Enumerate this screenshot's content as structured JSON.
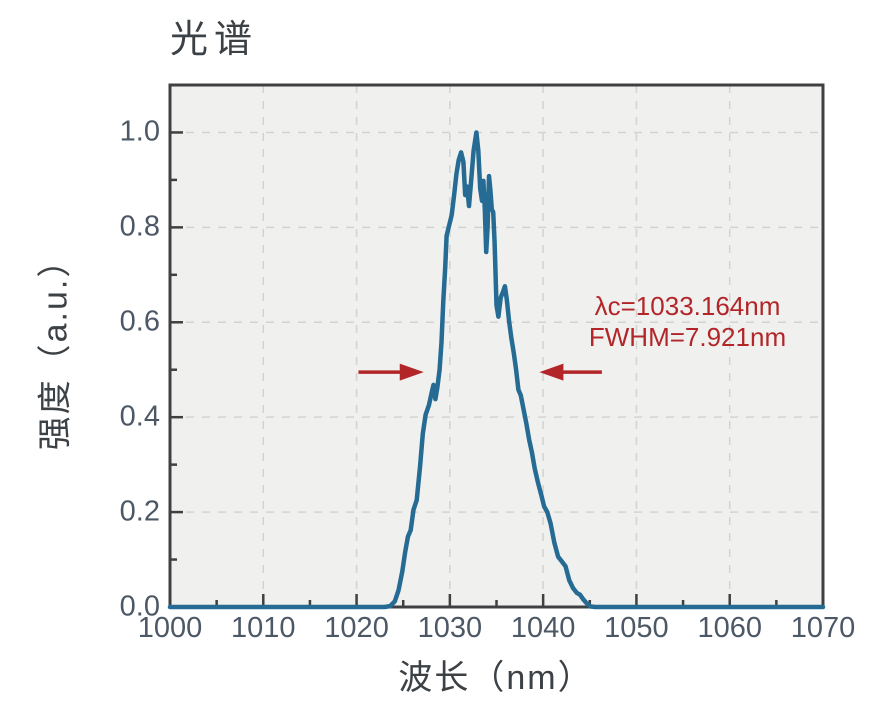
{
  "chart_data": {
    "type": "line",
    "title": "光谱",
    "xlabel": "波长（nm）",
    "ylabel": "强度（a.u.）",
    "xlim": [
      1000,
      1070
    ],
    "ylim": [
      0,
      1.1
    ],
    "x_major_ticks": [
      1000,
      1010,
      1020,
      1030,
      1040,
      1050,
      1060,
      1070
    ],
    "x_minor_step": 5,
    "y_major_ticks": [
      0.0,
      0.2,
      0.4,
      0.6,
      0.8,
      1.0
    ],
    "y_minor_step": 0.1,
    "grid": "dashed-major",
    "legend": "none",
    "plot_bg": "#f0f0ee",
    "grid_color": "#d3d3d1",
    "spine_color": "#3f4041",
    "line_color": "#266b93",
    "annotation": {
      "lines": [
        "λc=1033.164nm",
        "FWHM=7.921nm"
      ],
      "color": "#b2262a"
    },
    "fwhm_arrows": [
      {
        "from_nm": 1020.2,
        "to_nm": 1027.2,
        "y": 0.495,
        "direction": "right"
      },
      {
        "from_nm": 1046.3,
        "to_nm": 1039.6,
        "y": 0.495,
        "direction": "left"
      }
    ],
    "series": [
      {
        "name": "spectrum",
        "points": [
          [
            1000,
            0
          ],
          [
            1005,
            0
          ],
          [
            1010,
            0
          ],
          [
            1015,
            0
          ],
          [
            1020,
            0
          ],
          [
            1023,
            0
          ],
          [
            1023.6,
            0.002
          ],
          [
            1024.1,
            0.012
          ],
          [
            1024.5,
            0.035
          ],
          [
            1024.9,
            0.075
          ],
          [
            1025.2,
            0.115
          ],
          [
            1025.5,
            0.148
          ],
          [
            1025.8,
            0.162
          ],
          [
            1026.1,
            0.205
          ],
          [
            1026.45,
            0.225
          ],
          [
            1026.8,
            0.295
          ],
          [
            1027.1,
            0.365
          ],
          [
            1027.4,
            0.405
          ],
          [
            1027.75,
            0.425
          ],
          [
            1028.05,
            0.452
          ],
          [
            1028.25,
            0.468
          ],
          [
            1028.45,
            0.438
          ],
          [
            1028.65,
            0.462
          ],
          [
            1028.9,
            0.5
          ],
          [
            1029.1,
            0.558
          ],
          [
            1029.3,
            0.645
          ],
          [
            1029.5,
            0.715
          ],
          [
            1029.65,
            0.782
          ],
          [
            1029.9,
            0.802
          ],
          [
            1030.2,
            0.826
          ],
          [
            1030.45,
            0.868
          ],
          [
            1030.7,
            0.912
          ],
          [
            1030.95,
            0.942
          ],
          [
            1031.2,
            0.958
          ],
          [
            1031.45,
            0.938
          ],
          [
            1031.65,
            0.868
          ],
          [
            1031.85,
            0.886
          ],
          [
            1032.05,
            0.845
          ],
          [
            1032.3,
            0.902
          ],
          [
            1032.55,
            0.962
          ],
          [
            1032.85,
            1.0
          ],
          [
            1033.05,
            0.962
          ],
          [
            1033.25,
            0.882
          ],
          [
            1033.45,
            0.856
          ],
          [
            1033.6,
            0.898
          ],
          [
            1033.75,
            0.838
          ],
          [
            1033.9,
            0.748
          ],
          [
            1034.05,
            0.8
          ],
          [
            1034.2,
            0.908
          ],
          [
            1034.35,
            0.878
          ],
          [
            1034.5,
            0.838
          ],
          [
            1034.65,
            0.832
          ],
          [
            1034.8,
            0.768
          ],
          [
            1035.0,
            0.636
          ],
          [
            1035.2,
            0.612
          ],
          [
            1035.45,
            0.652
          ],
          [
            1035.7,
            0.664
          ],
          [
            1035.9,
            0.676
          ],
          [
            1036.1,
            0.648
          ],
          [
            1036.35,
            0.602
          ],
          [
            1036.6,
            0.566
          ],
          [
            1036.85,
            0.535
          ],
          [
            1037.1,
            0.5
          ],
          [
            1037.35,
            0.458
          ],
          [
            1037.6,
            0.446
          ],
          [
            1037.9,
            0.416
          ],
          [
            1038.2,
            0.386
          ],
          [
            1038.5,
            0.352
          ],
          [
            1038.8,
            0.326
          ],
          [
            1039.1,
            0.292
          ],
          [
            1039.45,
            0.262
          ],
          [
            1039.8,
            0.236
          ],
          [
            1040.1,
            0.212
          ],
          [
            1040.45,
            0.2
          ],
          [
            1040.8,
            0.176
          ],
          [
            1041.2,
            0.136
          ],
          [
            1041.6,
            0.106
          ],
          [
            1042.0,
            0.096
          ],
          [
            1042.4,
            0.086
          ],
          [
            1042.8,
            0.056
          ],
          [
            1043.2,
            0.04
          ],
          [
            1043.6,
            0.03
          ],
          [
            1043.95,
            0.026
          ],
          [
            1044.3,
            0.016
          ],
          [
            1044.7,
            0.007
          ],
          [
            1045.1,
            0.001
          ],
          [
            1045.6,
            0
          ],
          [
            1048,
            0
          ],
          [
            1050,
            0
          ],
          [
            1055,
            0
          ],
          [
            1060,
            0
          ],
          [
            1065,
            0
          ],
          [
            1070,
            0
          ]
        ]
      }
    ]
  }
}
